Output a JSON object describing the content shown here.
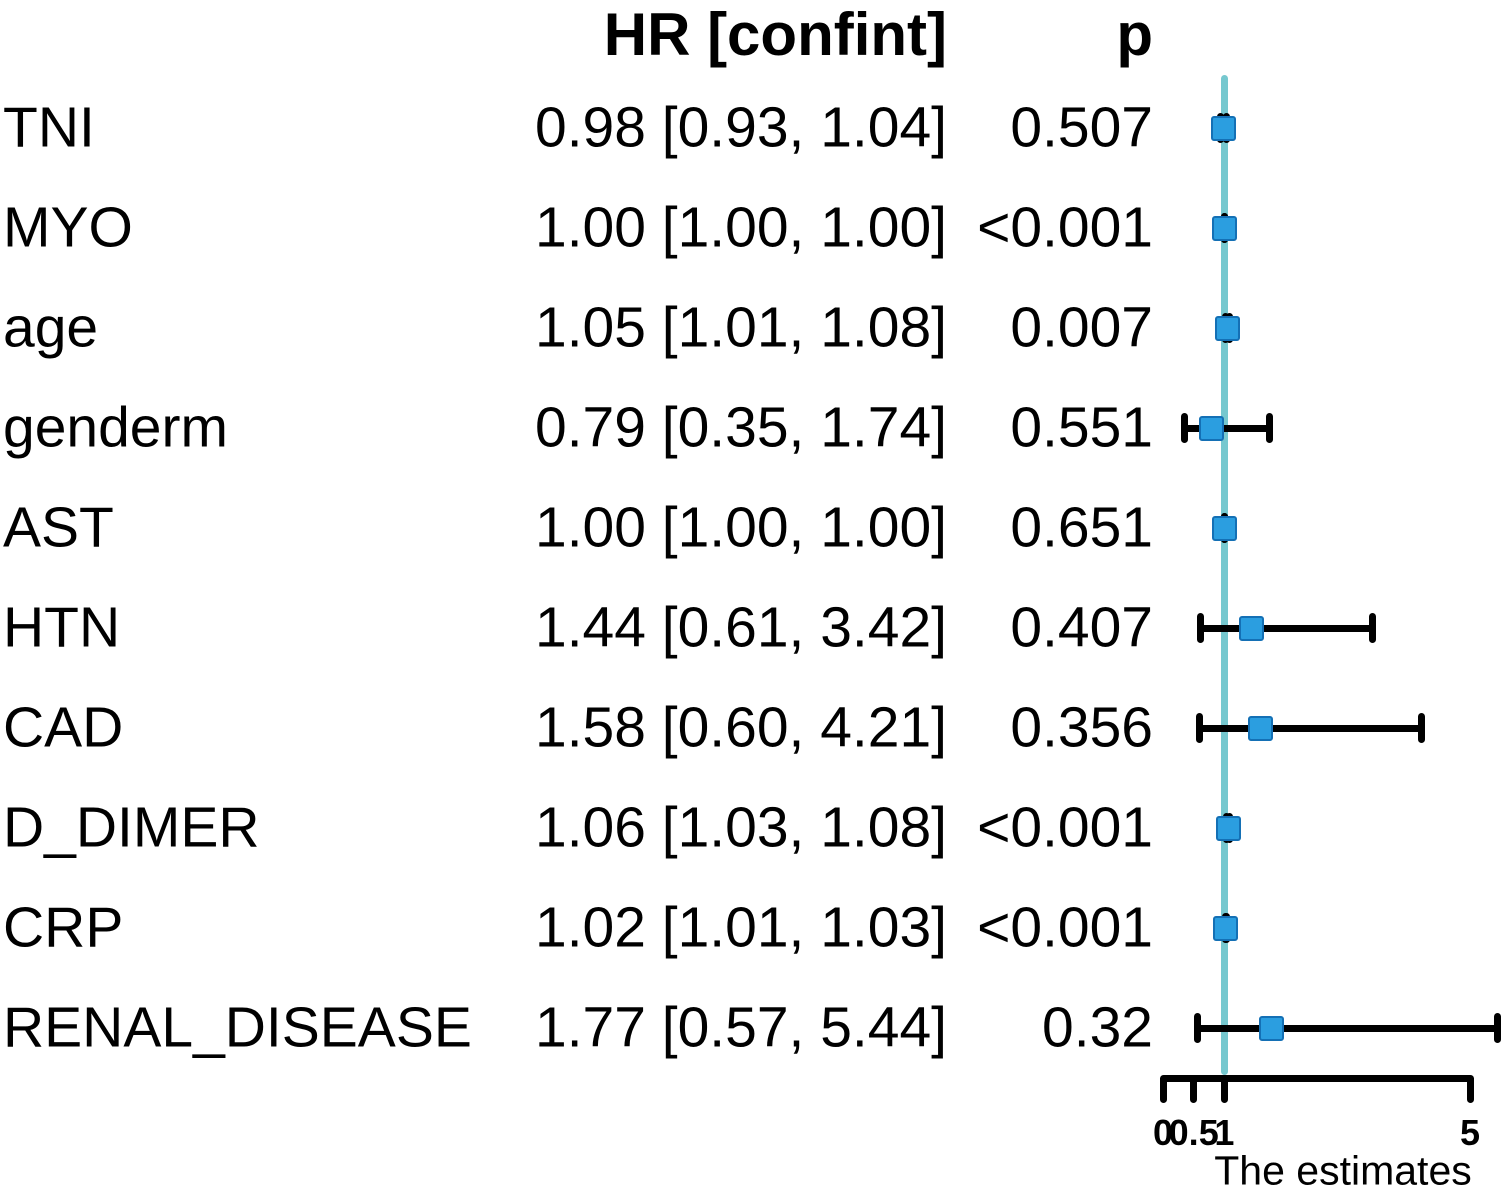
{
  "colors": {
    "marker_fill": "#2B9EE0",
    "marker_border": "#1470B5",
    "reference_line": "#76C8CF",
    "error_bar": "#000000",
    "text": "#000000"
  },
  "chart_data": {
    "type": "forest",
    "columns": {
      "hr_header": "HR [confint]",
      "p_header": "p"
    },
    "rows": [
      {
        "label": "TNI",
        "hr": 0.98,
        "ci_low": 0.93,
        "ci_high": 1.04,
        "hr_text": "0.98 [0.93, 1.04]",
        "p_text": "0.507"
      },
      {
        "label": "MYO",
        "hr": 1.0,
        "ci_low": 1.0,
        "ci_high": 1.0,
        "hr_text": "1.00 [1.00, 1.00]",
        "p_text": "<0.001"
      },
      {
        "label": "age",
        "hr": 1.05,
        "ci_low": 1.01,
        "ci_high": 1.08,
        "hr_text": "1.05 [1.01, 1.08]",
        "p_text": "0.007"
      },
      {
        "label": "genderm",
        "hr": 0.79,
        "ci_low": 0.35,
        "ci_high": 1.74,
        "hr_text": "0.79 [0.35, 1.74]",
        "p_text": "0.551"
      },
      {
        "label": "AST",
        "hr": 1.0,
        "ci_low": 1.0,
        "ci_high": 1.0,
        "hr_text": "1.00 [1.00, 1.00]",
        "p_text": "0.651"
      },
      {
        "label": "HTN",
        "hr": 1.44,
        "ci_low": 0.61,
        "ci_high": 3.42,
        "hr_text": "1.44 [0.61, 3.42]",
        "p_text": "0.407"
      },
      {
        "label": "CAD",
        "hr": 1.58,
        "ci_low": 0.6,
        "ci_high": 4.21,
        "hr_text": "1.58 [0.60, 4.21]",
        "p_text": "0.356"
      },
      {
        "label": "D_DIMER",
        "hr": 1.06,
        "ci_low": 1.03,
        "ci_high": 1.08,
        "hr_text": "1.06 [1.03, 1.08]",
        "p_text": "<0.001"
      },
      {
        "label": "CRP",
        "hr": 1.02,
        "ci_low": 1.01,
        "ci_high": 1.03,
        "hr_text": "1.02 [1.01, 1.03]",
        "p_text": "<0.001"
      },
      {
        "label": "RENAL_DISEASE",
        "hr": 1.77,
        "ci_low": 0.57,
        "ci_high": 5.44,
        "hr_text": "1.77 [0.57, 5.44]",
        "p_text": "0.32"
      }
    ],
    "x_axis": {
      "scale": "linear",
      "range": [
        0,
        5
      ],
      "ticks": [
        0,
        0.5,
        1,
        5
      ],
      "tick_labels": [
        "0",
        "0.5",
        "1",
        "5"
      ],
      "title": "The estimates"
    },
    "reference_line_value": 1,
    "legend": "none",
    "grid": "off"
  }
}
